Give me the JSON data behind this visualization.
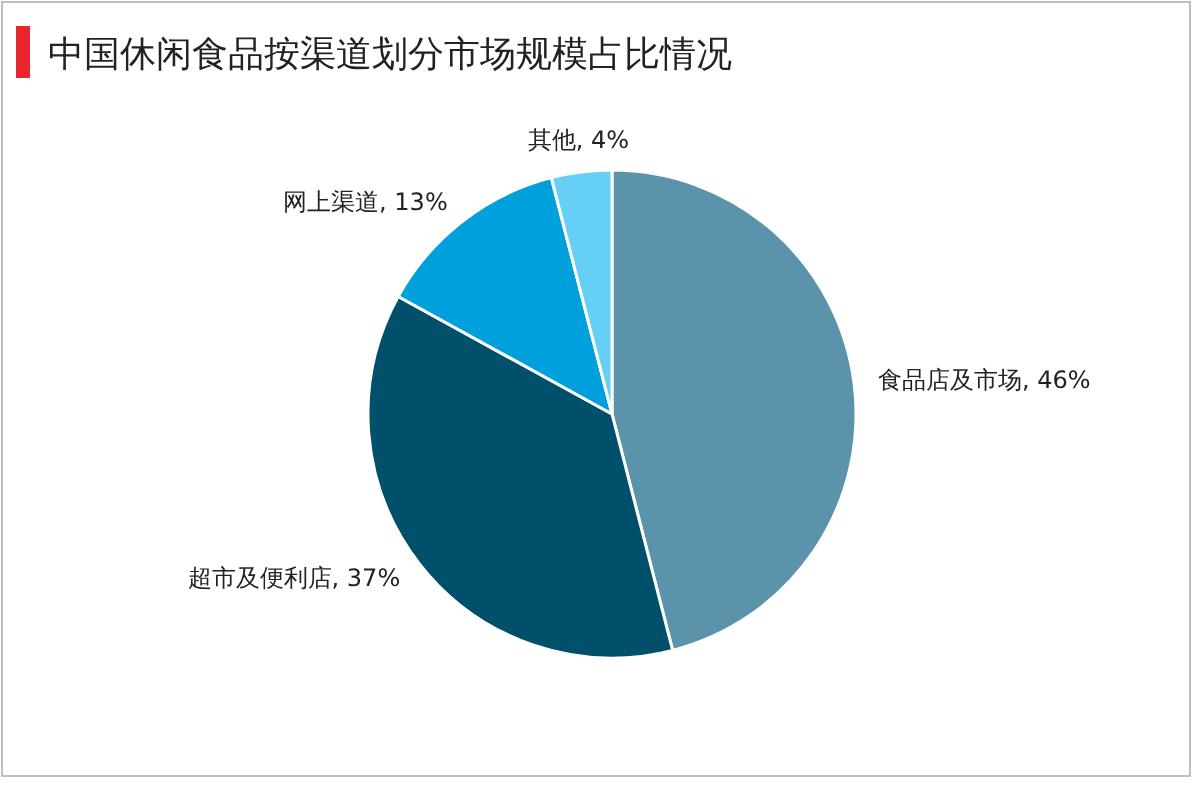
{
  "chart_data": {
    "type": "pie",
    "title": "中国休闲食品按渠道划分市场规模占比情况",
    "categories": [
      "食品店及市场",
      "超市及便利店",
      "网上渠道",
      "其他"
    ],
    "values": [
      46,
      37,
      13,
      4
    ],
    "colors": [
      "#5b93aa",
      "#004f6b",
      "#00a0dc",
      "#66cff5"
    ],
    "value_labels": [
      "46%",
      "37%",
      "13%",
      "4%"
    ],
    "legend": false
  }
}
